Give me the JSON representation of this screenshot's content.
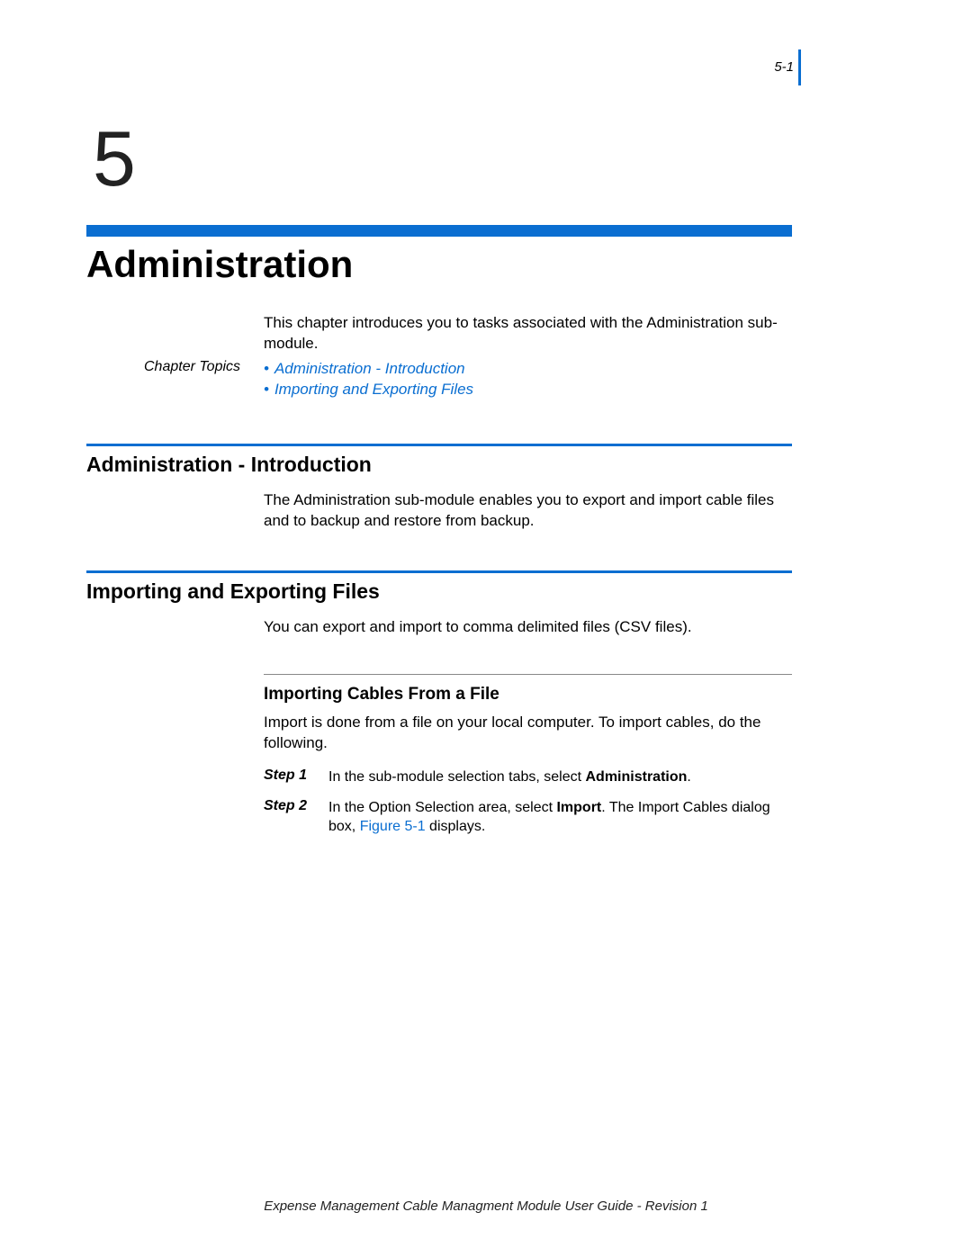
{
  "colors": {
    "accent": "#0a6ed1",
    "text": "#000000",
    "subrule": "#888888",
    "background": "#ffffff"
  },
  "page": {
    "number": "5-1",
    "chapter_number": "5",
    "chapter_title": "Administration",
    "intro": "This chapter introduces you to tasks associated with the Administration sub-module.",
    "topics_label": "Chapter Topics",
    "topics": [
      "Administration - Introduction",
      "Importing and Exporting Files"
    ]
  },
  "sections": {
    "intro": {
      "title": "Administration - Introduction",
      "body": "The Administration sub-module enables you to export and import cable files and to backup and restore from backup."
    },
    "importexport": {
      "title": "Importing and Exporting Files",
      "body": "You can export and import to comma delimited files (CSV files)."
    },
    "importing_cables": {
      "title": "Importing Cables From a File",
      "body": "Import is done from a file on your local computer. To import cables, do the following.",
      "steps": [
        {
          "label": "Step 1",
          "pre": "In the sub-module selection tabs, select ",
          "bold": "Administration",
          "post": "."
        },
        {
          "label": "Step 2",
          "pre": "In the Option Selection area, select ",
          "bold": "Import",
          "post1": ". The Import Cables dialog box, ",
          "figref": "Figure 5-1",
          "post2": " displays."
        }
      ]
    }
  },
  "footer": "Expense Management Cable Managment Module User Guide - Revision 1"
}
